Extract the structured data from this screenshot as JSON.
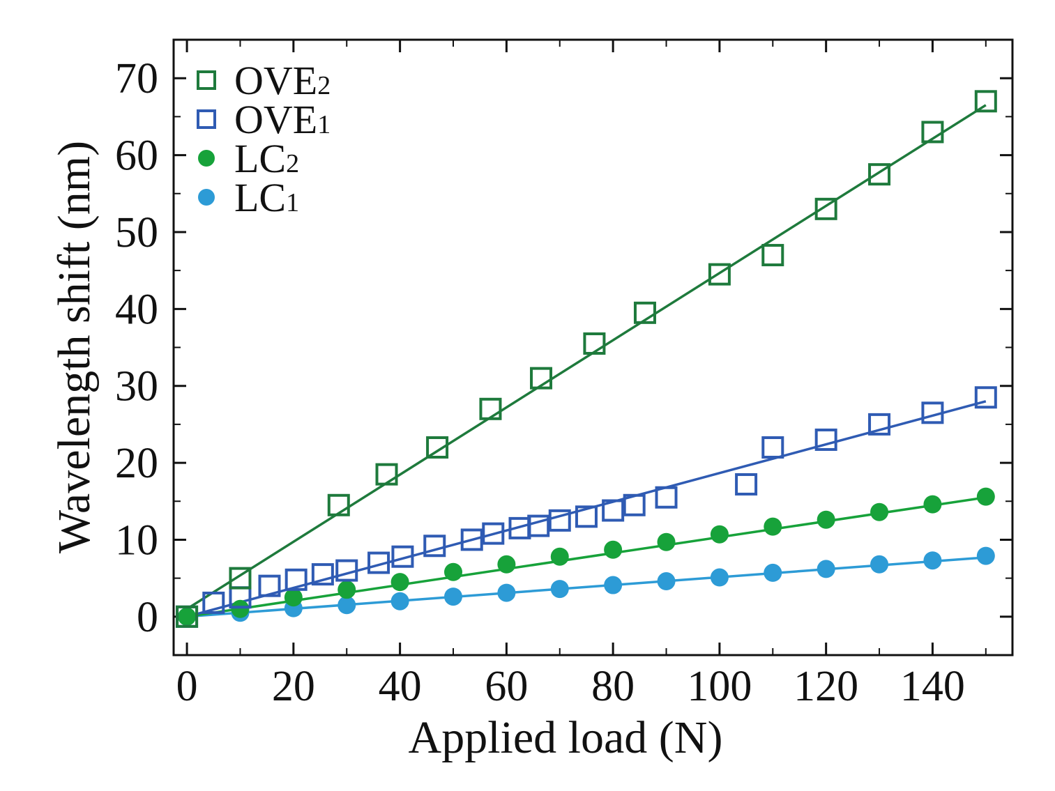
{
  "chart_data": {
    "type": "scatter",
    "title": "",
    "xlabel": "Applied load (N)",
    "ylabel": "Wavelength shift (nm)",
    "xlim": [
      -2.5,
      155
    ],
    "ylim": [
      -5,
      75
    ],
    "xticks": [
      0,
      20,
      40,
      60,
      80,
      100,
      120,
      140
    ],
    "yticks": [
      0,
      10,
      20,
      30,
      40,
      50,
      60,
      70
    ],
    "legend_position": "top-left",
    "grid": false,
    "series": [
      {
        "name": "OVE2",
        "label_main": "OVE",
        "label_sub": "2",
        "color": "#1e7a3c",
        "marker": "open-square",
        "x": [
          0,
          10,
          28.5,
          37.5,
          47,
          57,
          66.5,
          76.5,
          86,
          100,
          110,
          120,
          130,
          140,
          150
        ],
        "y": [
          0,
          5,
          14.5,
          18.5,
          22,
          27,
          31,
          35.5,
          39.5,
          44.5,
          47,
          53,
          57.5,
          63,
          67
        ],
        "fit": [
          [
            0,
            1.0
          ],
          [
            150,
            66.5
          ]
        ]
      },
      {
        "name": "OVE1",
        "label_main": "OVE",
        "label_sub": "1",
        "color": "#2f5bb3",
        "marker": "open-square",
        "x": [
          0,
          5,
          10,
          15.5,
          20.5,
          25.5,
          30,
          36,
          40.5,
          46.5,
          53.5,
          57.5,
          62.5,
          66,
          70,
          75,
          80,
          84,
          90,
          105,
          110,
          120,
          130,
          140,
          150
        ],
        "y": [
          0,
          1.8,
          2.5,
          4,
          4.8,
          5.5,
          6,
          7,
          7.8,
          9.2,
          10,
          10.8,
          11.5,
          11.8,
          12.5,
          13,
          13.8,
          14.5,
          15.5,
          17.2,
          22,
          23,
          25,
          26.5,
          28.5
        ],
        "fit": [
          [
            0,
            0
          ],
          [
            150,
            28.0
          ]
        ]
      },
      {
        "name": "LC2",
        "label_main": "LC",
        "label_sub": "2",
        "color": "#17a23a",
        "marker": "filled-circle",
        "x": [
          0,
          10,
          20,
          30,
          40,
          50,
          60,
          70,
          80,
          90,
          100,
          110,
          120,
          130,
          140,
          150
        ],
        "y": [
          0,
          1,
          2.5,
          3.5,
          4.5,
          5.8,
          6.8,
          7.8,
          8.7,
          9.7,
          10.7,
          11.7,
          12.6,
          13.6,
          14.6,
          15.6
        ],
        "fit": [
          [
            0,
            0
          ],
          [
            150,
            15.5
          ]
        ]
      },
      {
        "name": "LC1",
        "label_main": "LC",
        "label_sub": "1",
        "color": "#2d9bd6",
        "marker": "filled-circle",
        "x": [
          0,
          10,
          20,
          30,
          40,
          50,
          60,
          70,
          80,
          90,
          100,
          110,
          120,
          130,
          140,
          150
        ],
        "y": [
          0,
          0.5,
          1.1,
          1.5,
          2,
          2.6,
          3.1,
          3.6,
          4.1,
          4.6,
          5.1,
          5.7,
          6.2,
          6.8,
          7.3,
          7.9
        ],
        "fit": [
          [
            0,
            0
          ],
          [
            150,
            7.7
          ]
        ]
      }
    ]
  }
}
